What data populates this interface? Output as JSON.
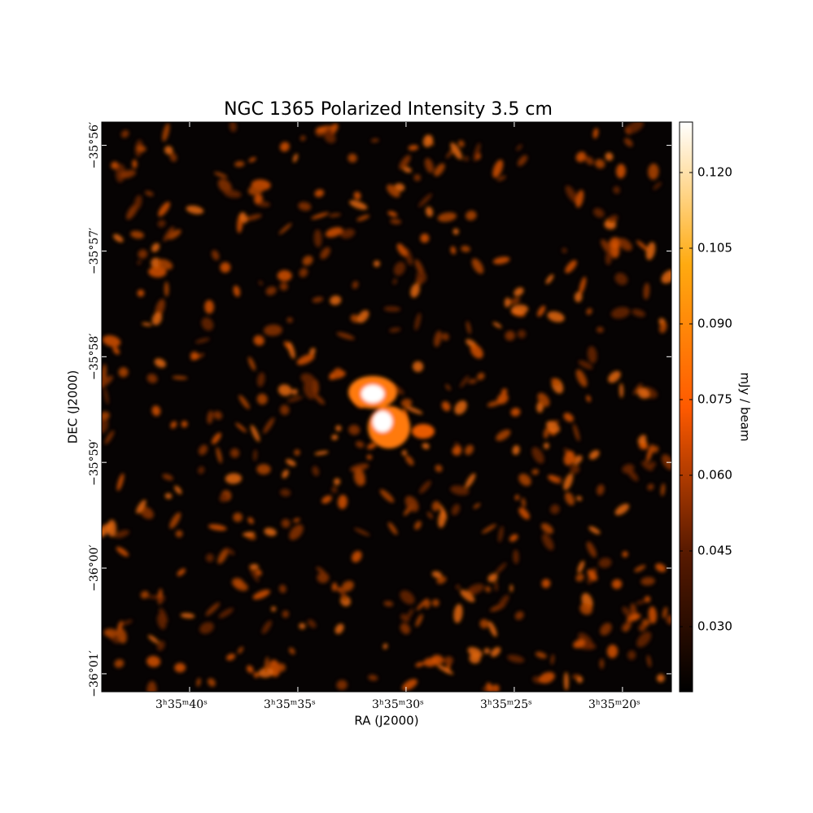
{
  "chart_data": {
    "type": "image",
    "title": "NGC 1365 Polarized Intensity 3.5 cm",
    "xlabel": "RA (J2000)",
    "ylabel": "DEC (J2000)",
    "xlim": [
      44.06,
      17.74
    ],
    "xticks": [
      {
        "value": 40,
        "label": "3ʰ35ᵐ40ˢ"
      },
      {
        "value": 35,
        "label": "3ʰ35ᵐ35ˢ"
      },
      {
        "value": 30,
        "label": "3ʰ35ᵐ30ˢ"
      },
      {
        "value": 25,
        "label": "3ʰ35ᵐ25ˢ"
      },
      {
        "value": 20,
        "label": "3ʰ35ᵐ20ˢ"
      }
    ],
    "ylim": [
      -2161.17,
      -2155.78
    ],
    "yticks": [
      {
        "value": -2156,
        "label": "−35°56′"
      },
      {
        "value": -2157,
        "label": "−35°57′"
      },
      {
        "value": -2158,
        "label": "−35°58′"
      },
      {
        "value": -2159,
        "label": "−35°59′"
      },
      {
        "value": -2160,
        "label": "−36°00′"
      },
      {
        "value": -2161,
        "label": "−36°01′"
      }
    ],
    "colorbar": {
      "label": "mJy / beam",
      "lim": [
        0.0171,
        0.13
      ],
      "ticks": [
        {
          "value": 0.03,
          "label": "0.030"
        },
        {
          "value": 0.045,
          "label": "0.045"
        },
        {
          "value": 0.06,
          "label": "0.060"
        },
        {
          "value": 0.075,
          "label": "0.075"
        },
        {
          "value": 0.09,
          "label": "0.090"
        },
        {
          "value": 0.105,
          "label": "0.105"
        },
        {
          "value": 0.12,
          "label": "0.120"
        }
      ]
    }
  }
}
